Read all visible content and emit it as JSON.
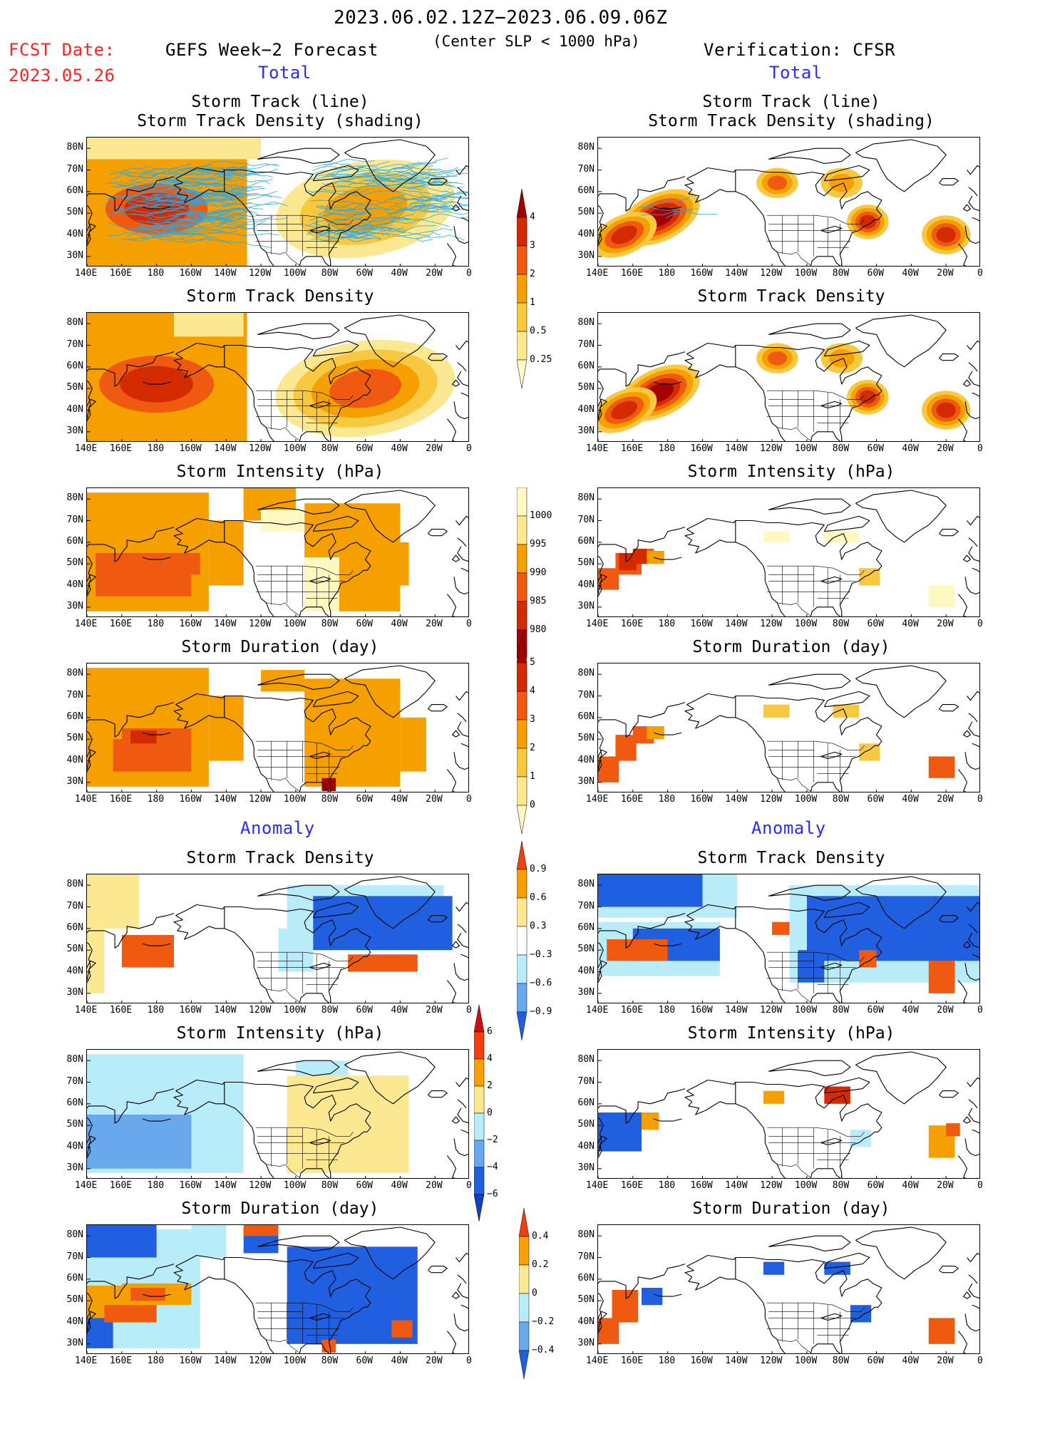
{
  "header": {
    "date_range": "2023.06.02.12Z−2023.06.09.06Z",
    "criteria": "(Center SLP < 1000 hPa)",
    "fcst_date_label": "FCST Date:",
    "fcst_date_value": "2023.05.26",
    "left_title": "GEFS Week−2 Forecast",
    "right_title": "Verification: CFSR"
  },
  "sections": {
    "total_label": "Total",
    "anomaly_label": "Anomaly"
  },
  "panel_titles": {
    "track_line": "Storm Track (line)",
    "track_density_shading": "Storm Track Density (shading)",
    "track_density": "Storm Track Density",
    "intensity": "Storm Intensity (hPa)",
    "duration": "Storm Duration (day)"
  },
  "axes": {
    "lat_labels": [
      "80N",
      "70N",
      "60N",
      "50N",
      "40N",
      "30N"
    ],
    "lon_labels": [
      "140E",
      "160E",
      "180",
      "160W",
      "140W",
      "120W",
      "100W",
      "80W",
      "60W",
      "40W",
      "20W",
      "0"
    ]
  },
  "colorbars": {
    "density_total": {
      "labels": [
        "4",
        "3",
        "2",
        "1",
        "0.5",
        "0.25"
      ],
      "colors": [
        "#a50000",
        "#d42a00",
        "#ef5a10",
        "#f6a000",
        "#f8c840",
        "#fbe890",
        "#fff8c0"
      ]
    },
    "intensity_total": {
      "labels": [
        "1000",
        "995",
        "990",
        "985",
        "980"
      ],
      "colors": [
        "#fff8c0",
        "#fbe890",
        "#f6a000",
        "#ef5a10",
        "#d42a00",
        "#a50000"
      ]
    },
    "duration_total": {
      "labels": [
        "5",
        "4",
        "3",
        "2",
        "1",
        "0"
      ],
      "colors": [
        "#a50000",
        "#d42a00",
        "#ef5a10",
        "#f6a000",
        "#f8c840",
        "#fbe890",
        "#fff8c0"
      ]
    },
    "density_anom": {
      "labels": [
        "0.9",
        "0.6",
        "0.3",
        "−0.3",
        "−0.6",
        "−0.9"
      ],
      "colors": [
        "#f04010",
        "#f6a000",
        "#fbe890",
        "#ffffff",
        "#b8ecf8",
        "#6aa8ee",
        "#2060e0"
      ]
    },
    "intensity_anom": {
      "labels": [
        "6",
        "4",
        "2",
        "0",
        "−2",
        "−4",
        "−6"
      ],
      "colors": [
        "#cc1010",
        "#f04010",
        "#f6a000",
        "#fbe890",
        "#b8ecf8",
        "#6aa8ee",
        "#2060e0",
        "#1040c0"
      ]
    },
    "duration_anom": {
      "labels": [
        "0.4",
        "0.2",
        "0",
        "−0.2",
        "−0.4"
      ],
      "colors": [
        "#f04010",
        "#f6a000",
        "#fbe890",
        "#b8ecf8",
        "#6aa8ee",
        "#2060e0"
      ]
    }
  },
  "palette": {
    "dark_red": "#a50000",
    "red": "#d42a00",
    "red_orange": "#ef5a10",
    "orange": "#f6a000",
    "light_orange": "#f8c840",
    "pale_yellow": "#fbe890",
    "cream": "#fff8c0",
    "light_blue": "#b8ecf8",
    "mid_blue": "#6aa8ee",
    "blue": "#2060e0",
    "track_blue": "#2aa8e8",
    "title_blue": "#2a2aff",
    "title_red": "#ff2020"
  }
}
